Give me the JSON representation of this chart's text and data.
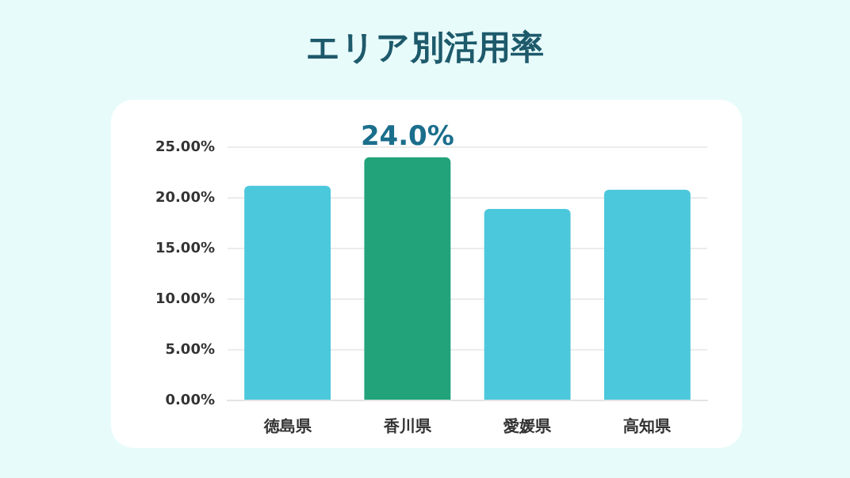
{
  "chart_data": {
    "type": "bar",
    "title": "エリア別活用率",
    "categories": [
      "徳島県",
      "香川県",
      "愛媛県",
      "高知県"
    ],
    "values": [
      21.2,
      24.0,
      18.9,
      20.8
    ],
    "colors": [
      "#4cc8dc",
      "#22a37a",
      "#4cc8dc",
      "#4cc8dc"
    ],
    "value_labels": [
      null,
      "24.0%",
      null,
      null
    ],
    "ylim": [
      0,
      25
    ],
    "yticks": [
      {
        "value": 0,
        "label": "0.00%"
      },
      {
        "value": 5,
        "label": "5.00%"
      },
      {
        "value": 10,
        "label": "10.00%"
      },
      {
        "value": 15,
        "label": "15.00%"
      },
      {
        "value": 20,
        "label": "20.00%"
      },
      {
        "value": 25,
        "label": "25.00%"
      }
    ],
    "grid": "y",
    "legend": false
  }
}
